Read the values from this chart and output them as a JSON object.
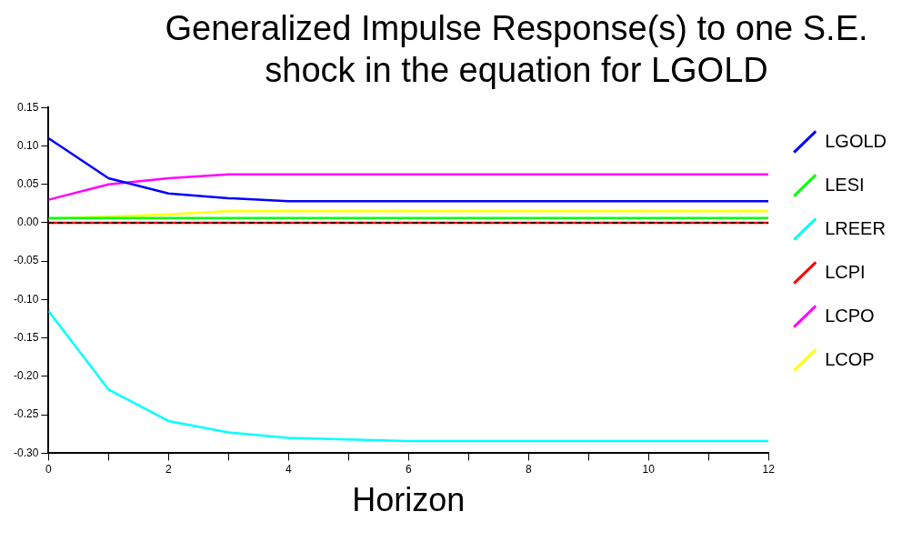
{
  "chart_data": {
    "type": "line",
    "title": "Generalized Impulse Response(s) to one S.E. shock in the equation for LGOLD",
    "xlabel": "Horizon",
    "x": [
      0,
      1,
      2,
      3,
      4,
      5,
      6,
      7,
      8,
      9,
      10,
      11,
      12
    ],
    "series": [
      {
        "name": "LGOLD",
        "color": "#0000ff",
        "values": [
          0.11,
          0.058,
          0.038,
          0.032,
          0.028,
          0.028,
          0.028,
          0.028,
          0.028,
          0.028,
          0.028,
          0.028,
          0.028
        ]
      },
      {
        "name": "LESI",
        "color": "#00ff00",
        "values": [
          0.006,
          0.006,
          0.006,
          0.006,
          0.006,
          0.006,
          0.006,
          0.006,
          0.006,
          0.006,
          0.006,
          0.006,
          0.006
        ]
      },
      {
        "name": "LREER",
        "color": "#00ffff",
        "values": [
          -0.115,
          -0.217,
          -0.258,
          -0.273,
          -0.28,
          -0.282,
          -0.284,
          -0.284,
          -0.284,
          -0.284,
          -0.284,
          -0.284,
          -0.284
        ]
      },
      {
        "name": "LCPI",
        "color": "#ff0000",
        "values": [
          0,
          0,
          0,
          0,
          0,
          0,
          0,
          0,
          0,
          0,
          0,
          0,
          0
        ]
      },
      {
        "name": "LCPO",
        "color": "#ff00ff",
        "values": [
          0.03,
          0.05,
          0.058,
          0.063,
          0.063,
          0.063,
          0.063,
          0.063,
          0.063,
          0.063,
          0.063,
          0.063,
          0.063
        ]
      },
      {
        "name": "LCOP",
        "color": "#ffff00",
        "values": [
          0.005,
          0.008,
          0.011,
          0.015,
          0.015,
          0.015,
          0.015,
          0.015,
          0.015,
          0.015,
          0.015,
          0.015,
          0.015
        ]
      }
    ],
    "xlim": [
      0,
      12
    ],
    "xticks": [
      0,
      {
        "value": 1,
        "label": null
      },
      2,
      {
        "value": 3,
        "label": null
      },
      4,
      {
        "value": 5,
        "label": null
      },
      6,
      {
        "value": 7,
        "label": null
      },
      8,
      {
        "value": 9,
        "label": null
      },
      10,
      {
        "value": 11,
        "label": null
      },
      12
    ],
    "ylim": [
      -0.3,
      0.15
    ],
    "yticks": [
      {
        "value": -0.3,
        "label": "-0.30"
      },
      {
        "value": -0.25,
        "label": "-0.25"
      },
      {
        "value": -0.2,
        "label": "-0.20"
      },
      {
        "value": -0.15,
        "label": "-0.15"
      },
      {
        "value": -0.1,
        "label": "-0.10"
      },
      {
        "value": -0.05,
        "label": "-0.05"
      },
      {
        "value": 0,
        "label": "0.00"
      },
      {
        "value": 0.05,
        "label": "0.05"
      },
      {
        "value": 0.1,
        "label": "0.10"
      },
      {
        "value": 0.15,
        "label": "0.15"
      }
    ],
    "ref_lines": [
      {
        "axis": "y",
        "value": 0,
        "color": "#000000",
        "line_style": "dashed"
      }
    ],
    "grid": false,
    "legend": "right",
    "marker": "none",
    "line_style": "solid"
  }
}
